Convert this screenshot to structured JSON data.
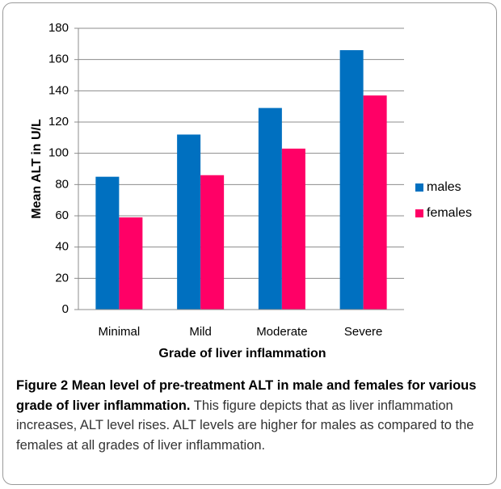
{
  "chart_data": {
    "type": "bar",
    "categories": [
      "Minimal",
      "Mild",
      "Moderate",
      "Severe"
    ],
    "series": [
      {
        "name": "males",
        "color": "#0070c0",
        "values": [
          85,
          112,
          129,
          166
        ]
      },
      {
        "name": "females",
        "color": "#ff0066",
        "values": [
          59,
          86,
          103,
          137
        ]
      }
    ],
    "xlabel": "Grade of liver inflammation",
    "ylabel": "Mean ALT in U/L",
    "ylim": [
      0,
      180
    ],
    "yticks": [
      0,
      20,
      40,
      60,
      80,
      100,
      120,
      140,
      160,
      180
    ],
    "grid": true,
    "legend": "right"
  },
  "caption": {
    "label": "Figure 2",
    "title": "Mean level of pre-treatment ALT in male and females for various grade of liver inflammation.",
    "text": "This figure depicts that as liver inflammation increases, ALT level rises. ALT levels are higher for males as compared to the females at all grades of liver inflammation."
  }
}
